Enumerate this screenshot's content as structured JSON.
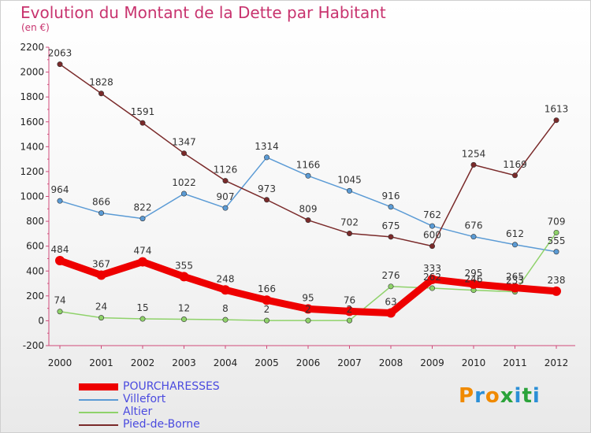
{
  "chart_data": {
    "type": "line",
    "title": "Evolution du Montant de la Dette par Habitant",
    "subtitle": "(en €)",
    "x": [
      "2000",
      "2001",
      "2002",
      "2003",
      "2004",
      "2005",
      "2006",
      "2007",
      "2008",
      "2009",
      "2010",
      "2011",
      "2012"
    ],
    "ylim": [
      -200,
      2200
    ],
    "yticks": [
      -200,
      0,
      200,
      400,
      600,
      800,
      1000,
      1200,
      1400,
      1600,
      1800,
      2000,
      2200
    ],
    "grid": false,
    "legend_position": "bottom-left",
    "series": [
      {
        "name": "POURCHARESSES",
        "color": "#ee0000",
        "values": [
          484,
          367,
          474,
          355,
          248,
          166,
          95,
          76,
          63,
          333,
          295,
          265,
          238
        ]
      },
      {
        "name": "Villefort",
        "color": "#5b9bd5",
        "values": [
          964,
          866,
          822,
          1022,
          907,
          1314,
          1166,
          1045,
          916,
          762,
          676,
          612,
          555
        ]
      },
      {
        "name": "Altier",
        "color": "#8fd26a",
        "values": [
          74,
          24,
          15,
          12,
          8,
          2,
          2,
          2,
          276,
          262,
          246,
          233,
          709
        ]
      },
      {
        "name": "Pied-de-Borne",
        "color": "#7a2a2a",
        "values": [
          2063,
          1828,
          1591,
          1347,
          1126,
          973,
          809,
          702,
          675,
          600,
          1254,
          1169,
          1613
        ]
      }
    ]
  },
  "logo": {
    "text": "Proxiti"
  }
}
